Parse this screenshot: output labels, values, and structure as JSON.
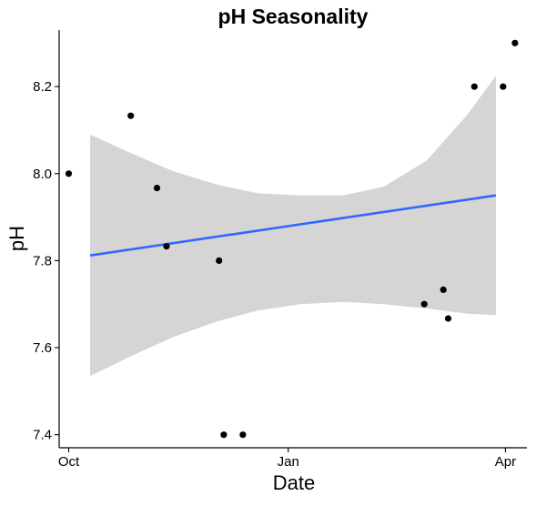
{
  "chart_data": {
    "type": "scatter",
    "title": "pH Seasonality",
    "xlabel": "Date",
    "ylabel": "pH",
    "x_ticks": [
      "Oct",
      "Jan",
      "Apr"
    ],
    "y_ticks": [
      "7.4",
      "7.6",
      "7.8",
      "8.0",
      "8.2"
    ],
    "xlim": [
      "2019-09-27",
      "2020-04-10"
    ],
    "ylim": [
      7.37,
      8.33
    ],
    "grid": false,
    "legend": "none",
    "colors": {
      "points": "#000000",
      "trend_line": "#3366FF",
      "confidence_band": "#D5D5D5"
    },
    "series": [
      {
        "values": [
          {
            "x": "2019-10-01",
            "y": 8.0
          },
          {
            "x": "2019-10-27",
            "y": 8.133
          },
          {
            "x": "2019-11-07",
            "y": 7.967
          },
          {
            "x": "2019-11-11",
            "y": 7.833
          },
          {
            "x": "2019-12-03",
            "y": 7.8
          },
          {
            "x": "2019-12-05",
            "y": 7.4
          },
          {
            "x": "2019-12-13",
            "y": 7.4
          },
          {
            "x": "2020-02-27",
            "y": 7.7
          },
          {
            "x": "2020-03-06",
            "y": 7.733
          },
          {
            "x": "2020-03-08",
            "y": 7.667
          },
          {
            "x": "2020-03-19",
            "y": 8.2
          },
          {
            "x": "2020-03-31",
            "y": 8.2
          },
          {
            "x": "2020-04-05",
            "y": 8.3
          }
        ]
      }
    ],
    "trend_line": {
      "method": "linear",
      "start": {
        "x": "2019-10-10",
        "y": 7.812
      },
      "end": {
        "x": "2020-03-28",
        "y": 7.95
      }
    },
    "confidence_band": [
      {
        "x": "2019-10-10",
        "lower": 7.535,
        "upper": 8.09
      },
      {
        "x": "2019-10-28",
        "lower": 7.583,
        "upper": 8.045
      },
      {
        "x": "2019-11-14",
        "lower": 7.625,
        "upper": 8.005
      },
      {
        "x": "2019-12-02",
        "lower": 7.66,
        "upper": 7.975
      },
      {
        "x": "2019-12-19",
        "lower": 7.685,
        "upper": 7.955
      },
      {
        "x": "2020-01-06",
        "lower": 7.7,
        "upper": 7.95
      },
      {
        "x": "2020-01-24",
        "lower": 7.705,
        "upper": 7.95
      },
      {
        "x": "2020-02-10",
        "lower": 7.7,
        "upper": 7.97
      },
      {
        "x": "2020-02-28",
        "lower": 7.69,
        "upper": 8.03
      },
      {
        "x": "2020-03-16",
        "lower": 7.678,
        "upper": 8.135
      },
      {
        "x": "2020-03-28",
        "lower": 7.675,
        "upper": 8.225
      }
    ]
  }
}
